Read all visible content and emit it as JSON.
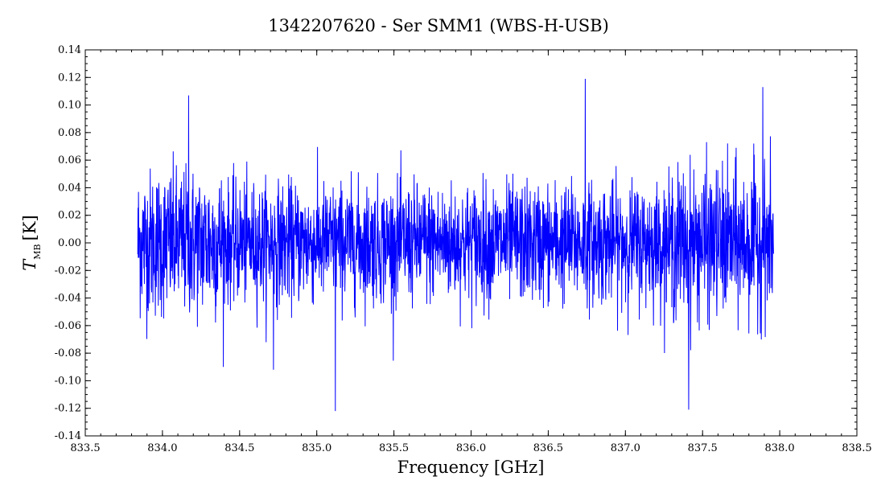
{
  "chart_data": {
    "type": "line",
    "title": "1342207620 - Ser SMM1 (WBS-H-USB)",
    "xlabel": "Frequency [GHz]",
    "ylabel_symbol": "T",
    "ylabel_subscript": "MB",
    "ylabel_unit": "[K]",
    "xlim": [
      833.5,
      838.5
    ],
    "ylim": [
      -0.14,
      0.14
    ],
    "x_ticks": [
      "833.5",
      "834.0",
      "834.5",
      "835.0",
      "835.5",
      "836.0",
      "836.5",
      "837.0",
      "837.5",
      "838.0",
      "838.5"
    ],
    "y_ticks": [
      "0.14",
      "0.12",
      "0.10",
      "0.08",
      "0.06",
      "0.04",
      "0.02",
      "0.00",
      "-0.02",
      "-0.04",
      "-0.06",
      "-0.08",
      "-0.10",
      "-0.12",
      "-0.14"
    ],
    "grid": false,
    "series": [
      {
        "color": "#0000ff",
        "x_range": [
          833.84,
          837.96
        ],
        "noise_rms_K": 0.025,
        "peaks": [
          {
            "x": 834.17,
            "y": 0.107
          },
          {
            "x": 836.74,
            "y": 0.119
          },
          {
            "x": 837.89,
            "y": 0.113
          },
          {
            "x": 835.12,
            "y": -0.122
          },
          {
            "x": 837.41,
            "y": -0.121
          },
          {
            "x": 834.72,
            "y": -0.092
          }
        ]
      }
    ]
  }
}
